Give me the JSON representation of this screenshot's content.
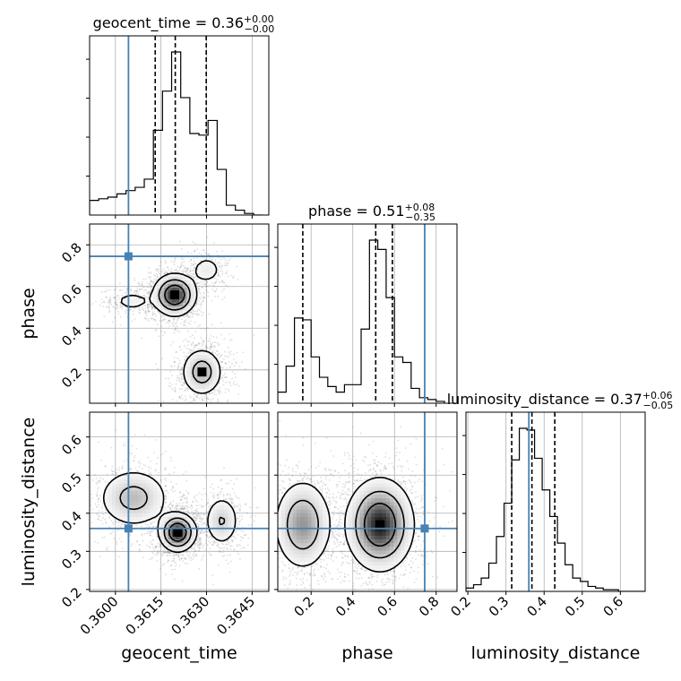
{
  "chart_data": {
    "type": "corner",
    "colors": {
      "truth": "#4682b4",
      "hist": "#000000",
      "grid": "#b0b0b0",
      "scatter": "#888888"
    },
    "grid": true,
    "parameters": [
      {
        "name": "geocent_time",
        "xlabel": "geocent_time",
        "title_main": "geocent_time = 0.36",
        "title_sup": "+0.00",
        "title_sub": "−0.00",
        "range": [
          0.35915,
          0.36505
        ],
        "ticks": [
          0.36,
          0.3615,
          0.363,
          0.3645
        ],
        "tick_labels": [
          "0.3600",
          "0.3615",
          "0.3630",
          "0.3645"
        ],
        "truth": 0.36043,
        "quantiles": [
          0.36131,
          0.36197,
          0.36299
        ],
        "hist_edges": [
          0.35915,
          0.35945,
          0.35975,
          0.36005,
          0.36035,
          0.36065,
          0.36095,
          0.36125,
          0.36155,
          0.36185,
          0.36215,
          0.36245,
          0.36275,
          0.36305,
          0.36335,
          0.36365,
          0.36395,
          0.36425,
          0.36455,
          0.36485
        ],
        "hist_values": [
          0.09,
          0.1,
          0.11,
          0.13,
          0.15,
          0.17,
          0.22,
          0.52,
          0.76,
          1.0,
          0.72,
          0.5,
          0.49,
          0.58,
          0.28,
          0.06,
          0.03,
          0.01,
          0.0
        ]
      },
      {
        "name": "phase",
        "xlabel": "phase",
        "ylabel": "phase",
        "title_main": "phase = 0.51",
        "title_sup": "+0.08",
        "title_sub": "−0.35",
        "range": [
          0.04,
          0.9
        ],
        "ticks": [
          0.2,
          0.4,
          0.6,
          0.8
        ],
        "tick_labels": [
          "0.2",
          "0.4",
          "0.6",
          "0.8"
        ],
        "truth": 0.745,
        "quantiles": [
          0.16,
          0.51,
          0.59
        ],
        "hist_edges": [
          0.04,
          0.08,
          0.12,
          0.16,
          0.2,
          0.24,
          0.28,
          0.32,
          0.36,
          0.4,
          0.44,
          0.48,
          0.52,
          0.56,
          0.6,
          0.64,
          0.68,
          0.72,
          0.76,
          0.8,
          0.84
        ],
        "hist_values": [
          0.06,
          0.2,
          0.46,
          0.45,
          0.25,
          0.14,
          0.09,
          0.06,
          0.1,
          0.1,
          0.4,
          0.88,
          0.83,
          0.57,
          0.25,
          0.22,
          0.08,
          0.03,
          0.02,
          0.01
        ]
      },
      {
        "name": "luminosity_distance",
        "xlabel": "luminosity_distance",
        "ylabel": "luminosity_distance",
        "title_main": "luminosity_distance = 0.37",
        "title_sup": "+0.06",
        "title_sub": "−0.05",
        "range": [
          0.195,
          0.665
        ],
        "ticks": [
          0.2,
          0.3,
          0.4,
          0.5,
          0.6
        ],
        "tick_labels": [
          "0.2",
          "0.3",
          "0.4",
          "0.5",
          "0.6"
        ],
        "truth": 0.36,
        "quantiles": [
          0.315,
          0.368,
          0.428
        ],
        "hist_edges": [
          0.195,
          0.215,
          0.235,
          0.255,
          0.275,
          0.295,
          0.315,
          0.335,
          0.355,
          0.375,
          0.395,
          0.415,
          0.435,
          0.455,
          0.475,
          0.495,
          0.515,
          0.535,
          0.555,
          0.575,
          0.595,
          0.615,
          0.635,
          0.665
        ],
        "hist_values": [
          0.02,
          0.04,
          0.08,
          0.17,
          0.33,
          0.53,
          0.79,
          0.98,
          0.97,
          0.8,
          0.61,
          0.45,
          0.29,
          0.16,
          0.08,
          0.06,
          0.03,
          0.02,
          0.01,
          0.01,
          0.0,
          0.0,
          0.0
        ]
      }
    ],
    "pairs": [
      {
        "x": "geocent_time",
        "y": "phase",
        "modes": [
          {
            "cx": 0.36195,
            "cy": 0.56,
            "sx": 0.00035,
            "sy": 0.05,
            "w": 0.55,
            "rot": -20,
            "n": 1400,
            "peak": true
          },
          {
            "cx": 0.36055,
            "cy": 0.53,
            "sx": 0.0004,
            "sy": 0.03,
            "w": 0.1,
            "rot": -10,
            "n": 250,
            "peak": false
          },
          {
            "cx": 0.363,
            "cy": 0.68,
            "sx": 0.0003,
            "sy": 0.04,
            "w": 0.12,
            "rot": 0,
            "n": 250,
            "peak": false
          },
          {
            "cx": 0.36285,
            "cy": 0.19,
            "sx": 0.00035,
            "sy": 0.06,
            "w": 0.28,
            "rot": 0,
            "n": 900,
            "peak": true
          }
        ]
      },
      {
        "x": "geocent_time",
        "y": "luminosity_distance",
        "modes": [
          {
            "cx": 0.36205,
            "cy": 0.35,
            "sx": 0.0003,
            "sy": 0.025,
            "w": 0.55,
            "rot": 20,
            "n": 1400,
            "peak": true
          },
          {
            "cx": 0.3606,
            "cy": 0.44,
            "sx": 0.0006,
            "sy": 0.04,
            "w": 0.25,
            "rot": -25,
            "n": 700,
            "peak": false
          },
          {
            "cx": 0.3635,
            "cy": 0.38,
            "sx": 0.0003,
            "sy": 0.035,
            "w": 0.2,
            "rot": 0,
            "n": 500,
            "peak": false
          }
        ]
      },
      {
        "x": "phase",
        "y": "luminosity_distance",
        "modes": [
          {
            "cx": 0.16,
            "cy": 0.37,
            "sx": 0.07,
            "sy": 0.06,
            "w": 0.38,
            "rot": 0,
            "n": 1100,
            "peak": false
          },
          {
            "cx": 0.53,
            "cy": 0.37,
            "sx": 0.08,
            "sy": 0.06,
            "w": 0.62,
            "rot": 0,
            "n": 1700,
            "peak": true
          }
        ]
      }
    ]
  }
}
